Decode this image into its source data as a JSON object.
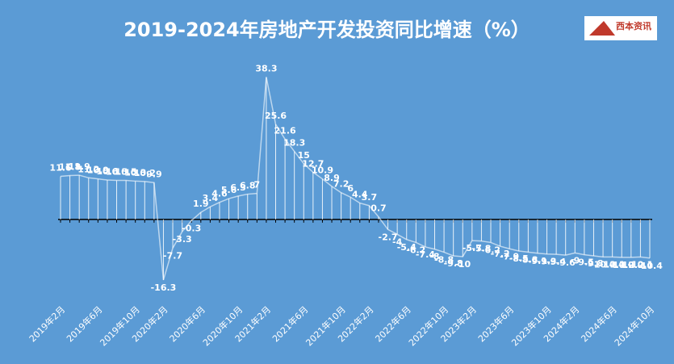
{
  "chart_data": {
    "type": "line",
    "title": "2019-2024年房地产开发投资同比增速（%）",
    "logo": "西本资讯",
    "color": "#ffffff",
    "background": "#5b9bd5",
    "categories": [
      "2019年2月",
      null,
      null,
      null,
      "2019年6月",
      null,
      null,
      null,
      "2019年10月",
      null,
      null,
      "2020年2月",
      null,
      null,
      null,
      "2020年6月",
      null,
      null,
      null,
      "2020年10月",
      null,
      null,
      "2021年2月",
      null,
      null,
      null,
      "2021年6月",
      null,
      null,
      null,
      "2021年10月",
      null,
      null,
      "2022年2月",
      null,
      null,
      null,
      "2022年6月",
      null,
      null,
      null,
      "2022年10月",
      null,
      null,
      "2023年2月",
      null,
      null,
      null,
      "2023年6月",
      null,
      null,
      null,
      "2023年10月",
      null,
      null,
      "2024年2月",
      null,
      null,
      null,
      "2024年6月",
      null,
      null,
      null,
      "2024年10月"
    ],
    "values": [
      11.6,
      11.8,
      11.9,
      11.2,
      10.9,
      10.6,
      10.5,
      10.5,
      10.3,
      10.2,
      9.9,
      -16.3,
      -7.7,
      -3.3,
      -0.3,
      1.9,
      3.4,
      4.6,
      5.6,
      6.3,
      6.8,
      7.0,
      38.3,
      25.6,
      21.6,
      18.3,
      15.0,
      12.7,
      10.9,
      8.9,
      7.2,
      6.0,
      4.4,
      3.7,
      0.7,
      -2.7,
      -4.0,
      -5.4,
      -6.2,
      -7.4,
      -8.0,
      -8.8,
      -9.8,
      -10.0,
      -5.7,
      -5.8,
      -6.2,
      -7.2,
      -7.9,
      -8.5,
      -8.8,
      -9.1,
      -9.3,
      -9.4,
      -9.6,
      -9.0,
      -9.5,
      -9.8,
      -10.1,
      -10.1,
      -10.2,
      -10.2,
      -10.1,
      -10.4
    ],
    "ylim": [
      -20,
      46
    ]
  }
}
